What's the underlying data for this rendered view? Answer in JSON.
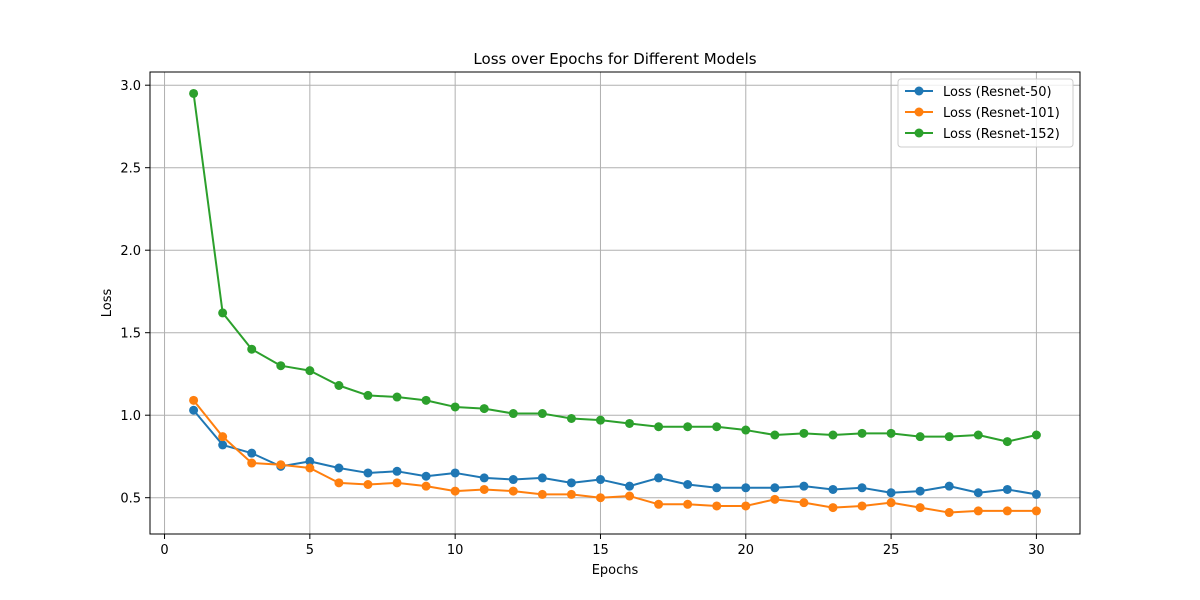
{
  "chart_data": {
    "type": "line",
    "title": "Loss over Epochs for Different Models",
    "xlabel": "Epochs",
    "ylabel": "Loss",
    "xlim": [
      -0.5,
      31.5
    ],
    "ylim": [
      0.28,
      3.08
    ],
    "xticks": [
      0,
      5,
      10,
      15,
      20,
      25,
      30
    ],
    "yticks": [
      0.5,
      1.0,
      1.5,
      2.0,
      2.5,
      3.0
    ],
    "xtick_labels": [
      "0",
      "5",
      "10",
      "15",
      "20",
      "25",
      "30"
    ],
    "ytick_labels": [
      "0.5",
      "1.0",
      "1.5",
      "2.0",
      "2.5",
      "3.0"
    ],
    "grid": true,
    "legend_position": "top-right",
    "x": [
      1,
      2,
      3,
      4,
      5,
      6,
      7,
      8,
      9,
      10,
      11,
      12,
      13,
      14,
      15,
      16,
      17,
      18,
      19,
      20,
      21,
      22,
      23,
      24,
      25,
      26,
      27,
      28,
      29,
      30
    ],
    "series": [
      {
        "name": "Loss (Resnet-50)",
        "color": "#1f77b4",
        "values": [
          1.03,
          0.82,
          0.77,
          0.69,
          0.72,
          0.68,
          0.65,
          0.66,
          0.63,
          0.65,
          0.62,
          0.61,
          0.62,
          0.59,
          0.61,
          0.57,
          0.62,
          0.58,
          0.56,
          0.56,
          0.56,
          0.57,
          0.55,
          0.56,
          0.53,
          0.54,
          0.57,
          0.53,
          0.55,
          0.52
        ]
      },
      {
        "name": "Loss (Resnet-101)",
        "color": "#ff7f0e",
        "values": [
          1.09,
          0.87,
          0.71,
          0.7,
          0.68,
          0.59,
          0.58,
          0.59,
          0.57,
          0.54,
          0.55,
          0.54,
          0.52,
          0.52,
          0.5,
          0.51,
          0.46,
          0.46,
          0.45,
          0.45,
          0.49,
          0.47,
          0.44,
          0.45,
          0.47,
          0.44,
          0.41,
          0.42,
          0.42,
          0.42
        ]
      },
      {
        "name": "Loss (Resnet-152)",
        "color": "#2ca02c",
        "values": [
          2.95,
          1.62,
          1.4,
          1.3,
          1.27,
          1.18,
          1.12,
          1.11,
          1.09,
          1.05,
          1.04,
          1.01,
          1.01,
          0.98,
          0.97,
          0.95,
          0.93,
          0.93,
          0.93,
          0.91,
          0.88,
          0.89,
          0.88,
          0.89,
          0.89,
          0.87,
          0.87,
          0.88,
          0.84,
          0.88
        ]
      }
    ]
  }
}
